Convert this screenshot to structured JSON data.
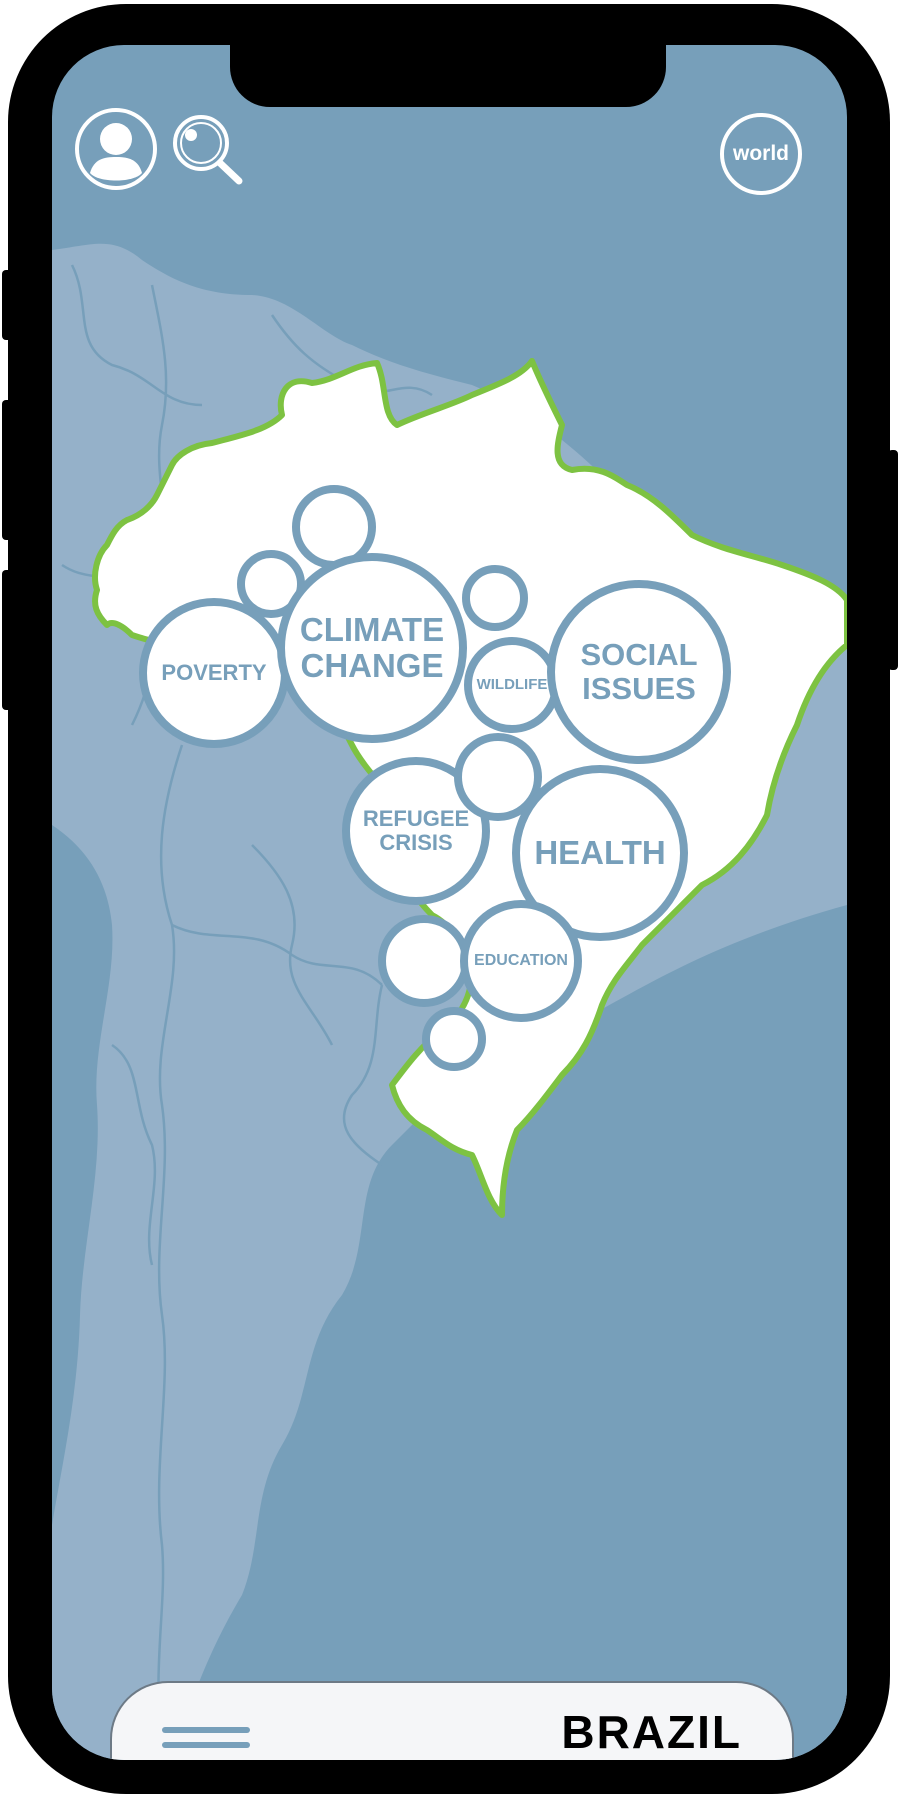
{
  "header": {
    "profile_icon": "user-profile-icon",
    "search_icon": "search-icon",
    "world_label": "world"
  },
  "topics": [
    {
      "label": "POVERTY"
    },
    {
      "label": "CLIMATE\nCHANGE"
    },
    {
      "label": "WILDLIFE"
    },
    {
      "label": "SOCIAL\nISSUES"
    },
    {
      "label": "REFUGEE\nCRISIS"
    },
    {
      "label": "HEALTH"
    },
    {
      "label": "EDUCATION"
    }
  ],
  "footer": {
    "menu_icon": "hamburger-menu-icon",
    "country": "BRAZIL"
  },
  "colors": {
    "ocean": "#779fba",
    "land": "#95b1c9",
    "highlight_border": "#7dc242",
    "bubble_stroke": "#779fba"
  }
}
